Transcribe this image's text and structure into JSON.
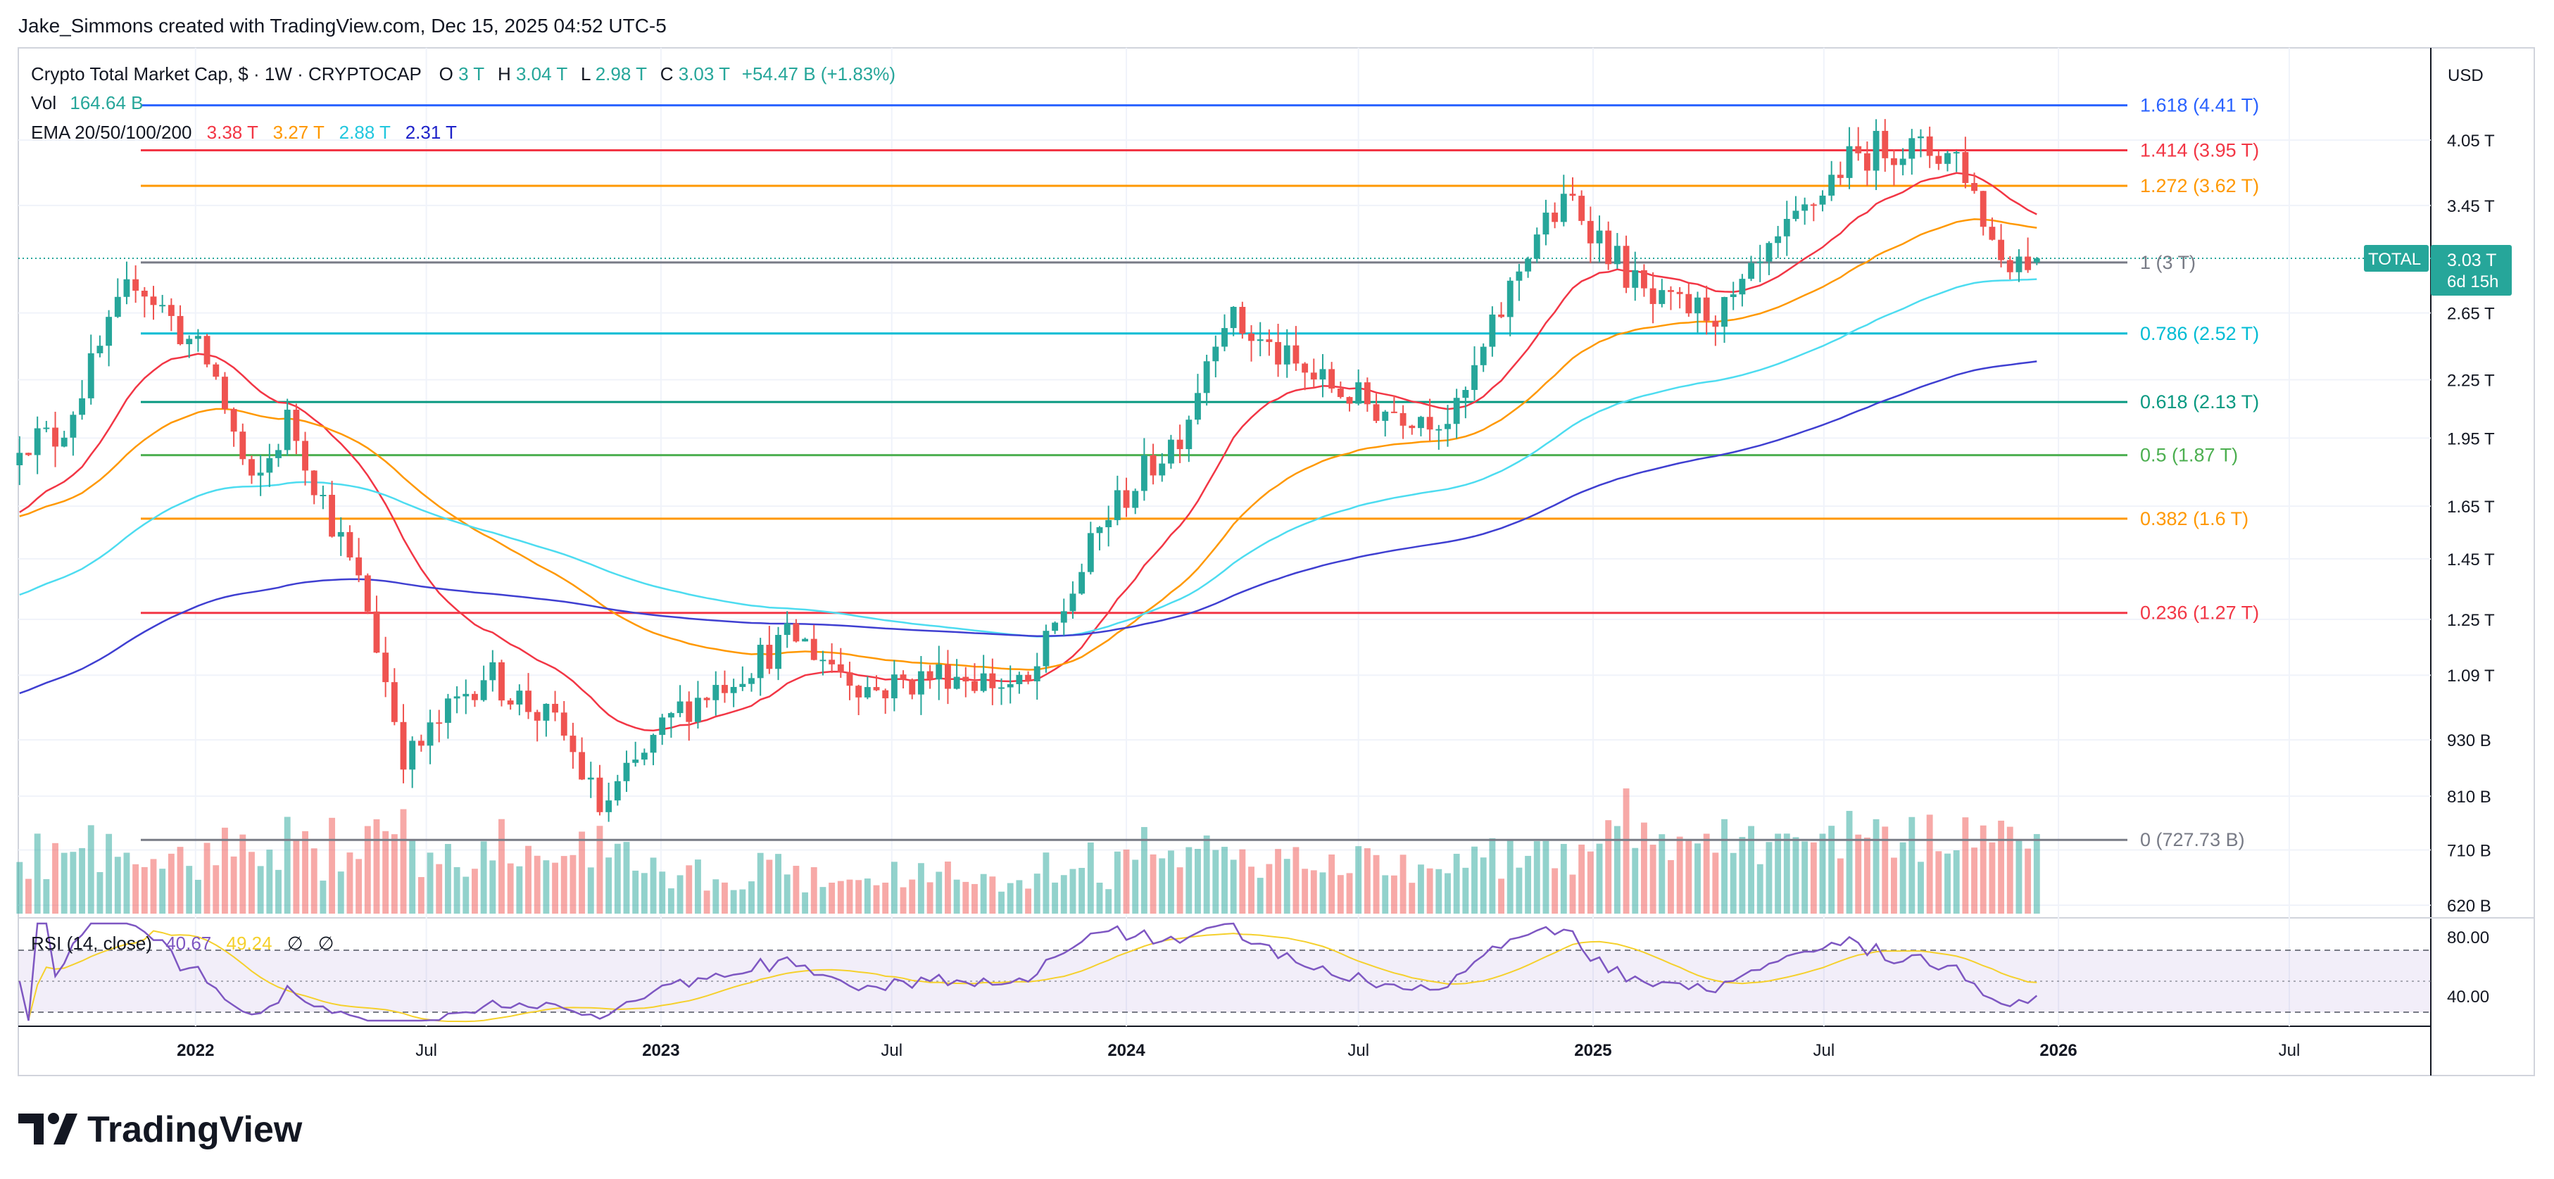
{
  "attribution": "Jake_Simmons created with TradingView.com, Dec 15, 2025 04:52 UTC-5",
  "brand": "TradingView",
  "legend": {
    "symbol": "Crypto Total Market Cap, $ · 1W · CRYPTOCAP",
    "o_label": "O",
    "o_val": "3 T",
    "h_label": "H",
    "h_val": "3.04 T",
    "l_label": "L",
    "l_val": "2.98 T",
    "c_label": "C",
    "c_val": "3.03 T",
    "change": "+54.47 B (+1.83%)",
    "vol_label": "Vol",
    "vol_val": "164.64 B",
    "ema_label": "EMA 20/50/100/200",
    "ema_vals": [
      "3.38 T",
      "3.27 T",
      "2.88 T",
      "2.31 T"
    ],
    "rsi_label": "RSI (14, close)",
    "rsi_val": "40.67",
    "rsi_ma_val": "49.24",
    "rsi_na1": "∅",
    "rsi_na2": "∅"
  },
  "currency": "USD",
  "price_tag": {
    "label": "TOTAL",
    "value": "3.03 T",
    "countdown": "6d 15h"
  },
  "colors": {
    "up": "#26a69a",
    "down": "#ef5350",
    "ema20": "#f23645",
    "ema50": "#ff9800",
    "ema100": "#4ddcf0",
    "ema200": "#3f3fd1",
    "rsi": "#7e57c2",
    "rsi_ma": "#f5d02c"
  },
  "chart_data": {
    "type": "candlestick",
    "title": "Crypto Total Market Cap, $ · 1W · CRYPTOCAP",
    "x_ticks": [
      "2022",
      "Jul",
      "2023",
      "Jul",
      "2024",
      "Jul",
      "2025",
      "Jul",
      "2026",
      "Jul"
    ],
    "y_ticks": [
      "4.05 T",
      "3.45 T",
      "2.65 T",
      "2.25 T",
      "1.95 T",
      "1.65 T",
      "1.45 T",
      "1.25 T",
      "1.09 T",
      "930 B",
      "810 B",
      "710 B",
      "620 B"
    ],
    "y_scale": "log",
    "fib_levels": [
      {
        "label": "1.618 (4.41 T)",
        "value": 4.41,
        "color": "#2962ff"
      },
      {
        "label": "1.414 (3.95 T)",
        "value": 3.95,
        "color": "#f23645"
      },
      {
        "label": "1.272 (3.62 T)",
        "value": 3.62,
        "color": "#ff9800"
      },
      {
        "label": "1 (3 T)",
        "value": 3.0,
        "color": "#787b86"
      },
      {
        "label": "0.786 (2.52 T)",
        "value": 2.52,
        "color": "#00bcd4"
      },
      {
        "label": "0.618 (2.13 T)",
        "value": 2.13,
        "color": "#089981"
      },
      {
        "label": "0.5 (1.87 T)",
        "value": 1.87,
        "color": "#4caf50"
      },
      {
        "label": "0.382 (1.6 T)",
        "value": 1.6,
        "color": "#ff9800"
      },
      {
        "label": "0.236 (1.27 T)",
        "value": 1.27,
        "color": "#f23645"
      },
      {
        "label": "0 (727.73 B)",
        "value": 0.7277,
        "color": "#787b86"
      }
    ],
    "close_anchors": [
      {
        "date": "2021-09",
        "value": 1.95
      },
      {
        "date": "2021-11",
        "value": 2.9
      },
      {
        "date": "2022-01",
        "value": 2.3
      },
      {
        "date": "2022-02",
        "value": 1.7
      },
      {
        "date": "2022-03",
        "value": 2.05
      },
      {
        "date": "2022-05",
        "value": 1.3
      },
      {
        "date": "2022-06",
        "value": 0.88
      },
      {
        "date": "2022-08",
        "value": 1.1
      },
      {
        "date": "2022-10",
        "value": 0.95
      },
      {
        "date": "2022-11",
        "value": 0.78
      },
      {
        "date": "2023-01",
        "value": 1.0
      },
      {
        "date": "2023-04",
        "value": 1.2
      },
      {
        "date": "2023-06",
        "value": 1.05
      },
      {
        "date": "2023-08",
        "value": 1.1
      },
      {
        "date": "2023-10",
        "value": 1.05
      },
      {
        "date": "2023-12",
        "value": 1.6
      },
      {
        "date": "2024-02",
        "value": 2.0
      },
      {
        "date": "2024-03",
        "value": 2.65
      },
      {
        "date": "2024-05",
        "value": 2.3
      },
      {
        "date": "2024-07",
        "value": 2.1
      },
      {
        "date": "2024-09",
        "value": 2.05
      },
      {
        "date": "2024-11",
        "value": 3.2
      },
      {
        "date": "2024-12",
        "value": 3.5
      },
      {
        "date": "2025-02",
        "value": 2.7
      },
      {
        "date": "2025-04",
        "value": 2.65
      },
      {
        "date": "2025-07",
        "value": 3.8
      },
      {
        "date": "2025-08",
        "value": 4.0
      },
      {
        "date": "2025-10",
        "value": 3.9
      },
      {
        "date": "2025-11",
        "value": 3.05
      },
      {
        "date": "2025-12",
        "value": 3.03
      }
    ],
    "ema_last": {
      "ema20": 3.38,
      "ema50": 3.27,
      "ema100": 2.88,
      "ema200": 2.31
    },
    "volume_last": 164.64,
    "rsi": {
      "last": 40.67,
      "ma_last": 49.24,
      "levels": [
        70,
        50,
        30
      ],
      "tick_labels": [
        "80.00",
        "40.00"
      ]
    }
  }
}
